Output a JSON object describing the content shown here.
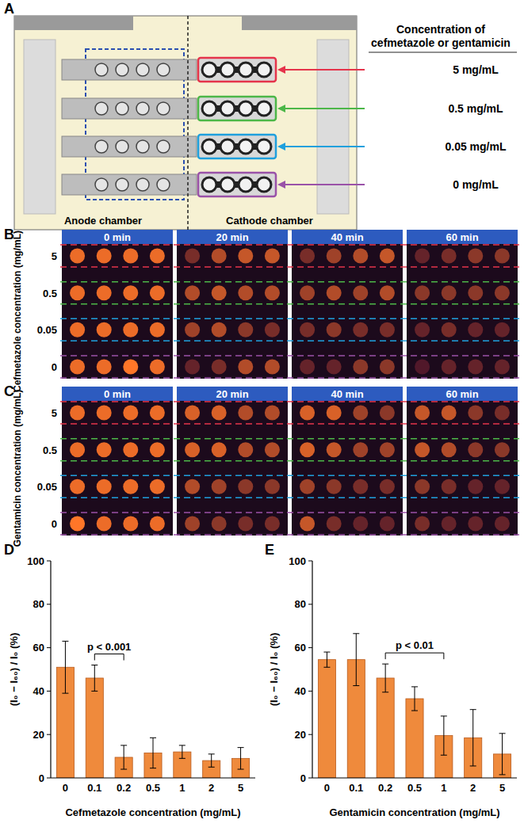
{
  "figure": {
    "panel_a": {
      "label": "A",
      "header": [
        "Concentration of",
        "cefmetazole or gentamicin"
      ],
      "chambers": [
        "Anode chamber",
        "Cathode chamber"
      ],
      "rows": [
        {
          "label": "5 mg/mL",
          "color": "#e5344b"
        },
        {
          "label": "0.5 mg/mL",
          "color": "#4cb748"
        },
        {
          "label": "0.05 mg/mL",
          "color": "#1fa0dd"
        },
        {
          "label": "0 mg/mL",
          "color": "#9a52a8"
        }
      ]
    },
    "image_panels": [
      {
        "label": "B",
        "ylabel": "Cefmetazole concentration (mg/mL)",
        "row_labels": [
          "5",
          "0.5",
          "0.05",
          "0"
        ],
        "times": [
          "0 min",
          "20 min",
          "40 min",
          "60 min"
        ],
        "brightness": [
          [
            [
              0.9,
              0.9,
              0.9,
              0.9
            ],
            [
              0.9,
              0.9,
              0.9,
              0.9
            ],
            [
              0.9,
              0.9,
              0.9,
              0.9
            ],
            [
              0.9,
              0.9,
              1.0,
              0.9
            ]
          ],
          [
            [
              0.3,
              0.6,
              0.7,
              0.7
            ],
            [
              0.6,
              0.7,
              0.6,
              0.6
            ],
            [
              0.5,
              0.6,
              0.4,
              0.3
            ],
            [
              0.2,
              0.3,
              0.6,
              0.6
            ]
          ],
          [
            [
              0.3,
              0.5,
              0.6,
              0.7
            ],
            [
              0.5,
              0.6,
              0.5,
              0.6
            ],
            [
              0.3,
              0.4,
              0.3,
              0.3
            ],
            [
              0.2,
              0.2,
              0.4,
              0.4
            ]
          ],
          [
            [
              0.2,
              0.3,
              0.4,
              0.4
            ],
            [
              0.4,
              0.4,
              0.4,
              0.4
            ],
            [
              0.2,
              0.3,
              0.2,
              0.2
            ],
            [
              0.1,
              0.2,
              0.2,
              0.2
            ]
          ]
        ]
      },
      {
        "label": "C",
        "ylabel": "Gentamicin concentration (mg/mL)",
        "row_labels": [
          "5",
          "0.5",
          "0.05",
          "0"
        ],
        "times": [
          "0 min",
          "20 min",
          "40 min",
          "60 min"
        ],
        "brightness": [
          [
            [
              0.9,
              0.9,
              0.9,
              0.9
            ],
            [
              0.9,
              0.9,
              0.9,
              0.9
            ],
            [
              0.9,
              0.9,
              0.9,
              0.9
            ],
            [
              1.0,
              0.9,
              0.9,
              0.9
            ]
          ],
          [
            [
              0.8,
              0.8,
              0.6,
              0.6
            ],
            [
              0.8,
              0.8,
              0.6,
              0.6
            ],
            [
              0.6,
              0.5,
              0.4,
              0.4
            ],
            [
              0.5,
              0.4,
              0.3,
              0.3
            ]
          ],
          [
            [
              0.8,
              0.8,
              0.5,
              0.4
            ],
            [
              0.8,
              0.7,
              0.5,
              0.5
            ],
            [
              0.5,
              0.4,
              0.3,
              0.3
            ],
            [
              0.7,
              0.3,
              0.2,
              0.2
            ]
          ],
          [
            [
              0.7,
              0.7,
              0.4,
              0.3
            ],
            [
              0.7,
              0.6,
              0.4,
              0.4
            ],
            [
              0.4,
              0.3,
              0.2,
              0.2
            ],
            [
              0.3,
              0.2,
              0.2,
              0.2
            ]
          ]
        ]
      }
    ]
  },
  "chart_data": [
    {
      "type": "bar",
      "title": "D",
      "xlabel": "Cefmetazole concentration (mg/mL)",
      "ylabel": "(I₀ − I₆₀) / I₀ (%)",
      "categories": [
        "0",
        "0.1",
        "0.2",
        "0.5",
        "1",
        "2",
        "5"
      ],
      "values": [
        51,
        46,
        9.5,
        11.5,
        12,
        8,
        9
      ],
      "errors": [
        12,
        6,
        5.5,
        7,
        3,
        3,
        5
      ],
      "color": "#ef8a3c",
      "ylim": [
        0,
        100
      ],
      "yticks": [
        0,
        20,
        40,
        60,
        80,
        100
      ],
      "annotations": [
        {
          "text": "p < 0.001",
          "between": [
            "0.1",
            "0.2"
          ]
        }
      ]
    },
    {
      "type": "bar",
      "title": "E",
      "xlabel": "Gentamicin concentration (mg/mL)",
      "ylabel": "(I₀ − I₆₀) / I₀ (%)",
      "categories": [
        "0",
        "0.1",
        "0.2",
        "0.5",
        "1",
        "2",
        "5"
      ],
      "values": [
        54.5,
        54.5,
        46,
        36.5,
        19.5,
        18.5,
        11
      ],
      "errors": [
        3.5,
        12,
        6.5,
        5.5,
        9,
        13,
        9.5
      ],
      "color": "#ef8a3c",
      "ylim": [
        0,
        100
      ],
      "yticks": [
        0,
        20,
        40,
        60,
        80,
        100
      ],
      "annotations": [
        {
          "text": "p < 0.01",
          "between": [
            "0.2",
            "1"
          ]
        }
      ]
    }
  ]
}
